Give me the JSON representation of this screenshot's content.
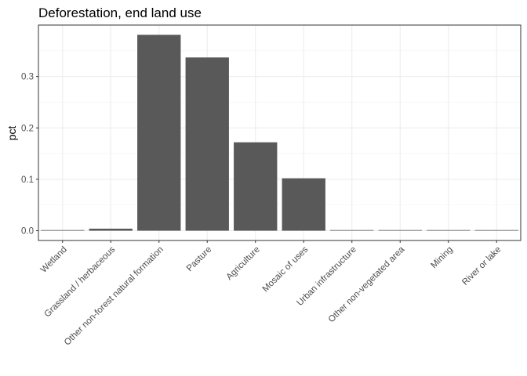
{
  "chart_data": {
    "type": "bar",
    "title": "Deforestation, end land use",
    "xlabel": "",
    "ylabel": "pct",
    "categories": [
      "Wetland",
      "Grassland / herbaceous",
      "Other non-forest natural formation",
      "Pasture",
      "Agriculture",
      "Mosaic of uses",
      "Urban infrastructure",
      "Other non-vegetated area",
      "Mining",
      "River or lake"
    ],
    "values": [
      0.001,
      0.004,
      0.381,
      0.337,
      0.172,
      0.102,
      0.0,
      0.0,
      0.0,
      0.001
    ],
    "ylim": [
      -0.019,
      0.4
    ],
    "yticks": [
      0.0,
      0.1,
      0.2,
      0.3
    ],
    "ytick_labels": [
      "0.0",
      "0.1",
      "0.2",
      "0.3"
    ],
    "grid": true,
    "bar_color": "#595959"
  }
}
